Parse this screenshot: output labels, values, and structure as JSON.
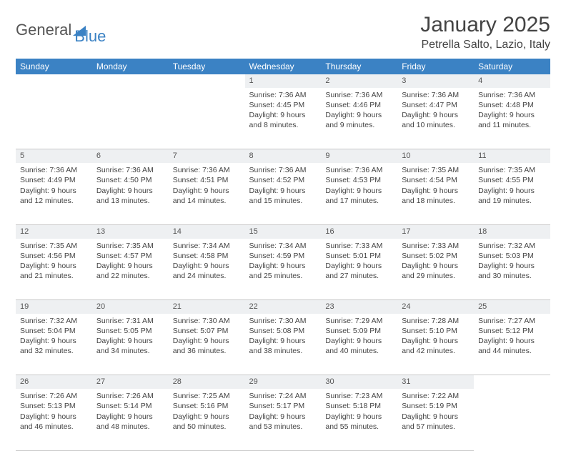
{
  "brand": {
    "part1": "General",
    "part2": "Blue",
    "accent": "#3b82c4",
    "text_color": "#555"
  },
  "title": {
    "month": "January 2025",
    "location": "Petrella Salto, Lazio, Italy"
  },
  "style": {
    "header_bg": "#3b82c4",
    "header_fg": "#ffffff",
    "daynum_bg": "#eef0f2",
    "border": "#c9c9c9",
    "font_size_title": 30,
    "font_size_location": 16,
    "font_size_th": 12,
    "font_size_cell": 10.5
  },
  "weekdays": [
    "Sunday",
    "Monday",
    "Tuesday",
    "Wednesday",
    "Thursday",
    "Friday",
    "Saturday"
  ],
  "weeks": [
    {
      "nums": [
        "",
        "",
        "",
        "1",
        "2",
        "3",
        "4"
      ],
      "cells": [
        null,
        null,
        null,
        {
          "sunrise": "7:36 AM",
          "sunset": "4:45 PM",
          "daylight": "9 hours and 8 minutes."
        },
        {
          "sunrise": "7:36 AM",
          "sunset": "4:46 PM",
          "daylight": "9 hours and 9 minutes."
        },
        {
          "sunrise": "7:36 AM",
          "sunset": "4:47 PM",
          "daylight": "9 hours and 10 minutes."
        },
        {
          "sunrise": "7:36 AM",
          "sunset": "4:48 PM",
          "daylight": "9 hours and 11 minutes."
        }
      ]
    },
    {
      "nums": [
        "5",
        "6",
        "7",
        "8",
        "9",
        "10",
        "11"
      ],
      "cells": [
        {
          "sunrise": "7:36 AM",
          "sunset": "4:49 PM",
          "daylight": "9 hours and 12 minutes."
        },
        {
          "sunrise": "7:36 AM",
          "sunset": "4:50 PM",
          "daylight": "9 hours and 13 minutes."
        },
        {
          "sunrise": "7:36 AM",
          "sunset": "4:51 PM",
          "daylight": "9 hours and 14 minutes."
        },
        {
          "sunrise": "7:36 AM",
          "sunset": "4:52 PM",
          "daylight": "9 hours and 15 minutes."
        },
        {
          "sunrise": "7:36 AM",
          "sunset": "4:53 PM",
          "daylight": "9 hours and 17 minutes."
        },
        {
          "sunrise": "7:35 AM",
          "sunset": "4:54 PM",
          "daylight": "9 hours and 18 minutes."
        },
        {
          "sunrise": "7:35 AM",
          "sunset": "4:55 PM",
          "daylight": "9 hours and 19 minutes."
        }
      ]
    },
    {
      "nums": [
        "12",
        "13",
        "14",
        "15",
        "16",
        "17",
        "18"
      ],
      "cells": [
        {
          "sunrise": "7:35 AM",
          "sunset": "4:56 PM",
          "daylight": "9 hours and 21 minutes."
        },
        {
          "sunrise": "7:35 AM",
          "sunset": "4:57 PM",
          "daylight": "9 hours and 22 minutes."
        },
        {
          "sunrise": "7:34 AM",
          "sunset": "4:58 PM",
          "daylight": "9 hours and 24 minutes."
        },
        {
          "sunrise": "7:34 AM",
          "sunset": "4:59 PM",
          "daylight": "9 hours and 25 minutes."
        },
        {
          "sunrise": "7:33 AM",
          "sunset": "5:01 PM",
          "daylight": "9 hours and 27 minutes."
        },
        {
          "sunrise": "7:33 AM",
          "sunset": "5:02 PM",
          "daylight": "9 hours and 29 minutes."
        },
        {
          "sunrise": "7:32 AM",
          "sunset": "5:03 PM",
          "daylight": "9 hours and 30 minutes."
        }
      ]
    },
    {
      "nums": [
        "19",
        "20",
        "21",
        "22",
        "23",
        "24",
        "25"
      ],
      "cells": [
        {
          "sunrise": "7:32 AM",
          "sunset": "5:04 PM",
          "daylight": "9 hours and 32 minutes."
        },
        {
          "sunrise": "7:31 AM",
          "sunset": "5:05 PM",
          "daylight": "9 hours and 34 minutes."
        },
        {
          "sunrise": "7:30 AM",
          "sunset": "5:07 PM",
          "daylight": "9 hours and 36 minutes."
        },
        {
          "sunrise": "7:30 AM",
          "sunset": "5:08 PM",
          "daylight": "9 hours and 38 minutes."
        },
        {
          "sunrise": "7:29 AM",
          "sunset": "5:09 PM",
          "daylight": "9 hours and 40 minutes."
        },
        {
          "sunrise": "7:28 AM",
          "sunset": "5:10 PM",
          "daylight": "9 hours and 42 minutes."
        },
        {
          "sunrise": "7:27 AM",
          "sunset": "5:12 PM",
          "daylight": "9 hours and 44 minutes."
        }
      ]
    },
    {
      "nums": [
        "26",
        "27",
        "28",
        "29",
        "30",
        "31",
        ""
      ],
      "cells": [
        {
          "sunrise": "7:26 AM",
          "sunset": "5:13 PM",
          "daylight": "9 hours and 46 minutes."
        },
        {
          "sunrise": "7:26 AM",
          "sunset": "5:14 PM",
          "daylight": "9 hours and 48 minutes."
        },
        {
          "sunrise": "7:25 AM",
          "sunset": "5:16 PM",
          "daylight": "9 hours and 50 minutes."
        },
        {
          "sunrise": "7:24 AM",
          "sunset": "5:17 PM",
          "daylight": "9 hours and 53 minutes."
        },
        {
          "sunrise": "7:23 AM",
          "sunset": "5:18 PM",
          "daylight": "9 hours and 55 minutes."
        },
        {
          "sunrise": "7:22 AM",
          "sunset": "5:19 PM",
          "daylight": "9 hours and 57 minutes."
        },
        null
      ]
    }
  ],
  "labels": {
    "sunrise": "Sunrise: ",
    "sunset": "Sunset: ",
    "daylight": "Daylight: "
  }
}
